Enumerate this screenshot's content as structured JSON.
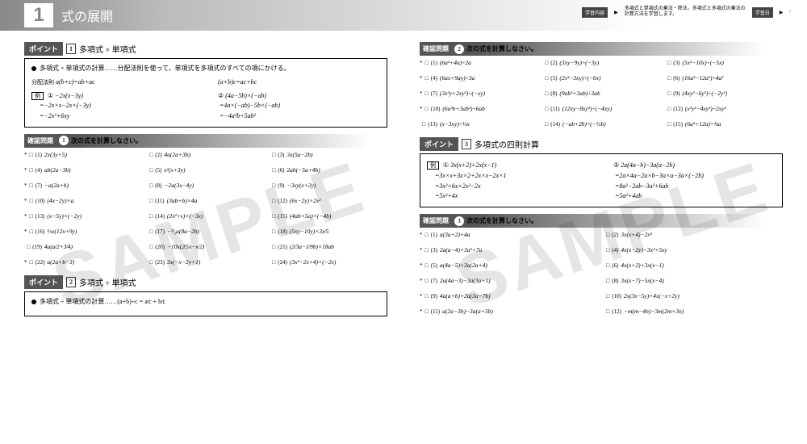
{
  "header": {
    "chapter_num": "1",
    "chapter_title": "式の展開",
    "study_content_label": "学習内容",
    "study_content_text": "多項式と単項式の乗法・除法，多項式と多項式の乗法の計算方法を学習します。",
    "study_day_label": "学習日",
    "study_day_value": "/"
  },
  "watermark": "SAMPLE",
  "point1": {
    "label": "ポイント",
    "num": "1",
    "title": "多項式 × 単項式",
    "lead": "多項式 × 単項式の計算……分配法則を使って，単項式を多項式のすべての項にかける。",
    "dist_label": "分配法則",
    "dist1": "a(b+c)=ab+ac",
    "dist2": "(a+b)c=ac+bc",
    "example_label": "例",
    "ex1": {
      "n": "①",
      "l1": "−2x(x−3y)",
      "l2": "=−2x×x−2x×(−3y)",
      "l3": "=−2x²+6xy"
    },
    "ex2": {
      "n": "②",
      "l1": "(4a−5b)×(−ab)",
      "l2": "=4a×(−ab)−5b×(−ab)",
      "l3": "=−4a²b+5ab²"
    }
  },
  "check1": {
    "label": "確認問題",
    "num": "1",
    "title": "次の式を計算しなさい。",
    "problems": [
      {
        "star": "*",
        "box": "□",
        "n": "(1)",
        "e": "2x(3y+5)"
      },
      {
        "star": "",
        "box": "□",
        "n": "(2)",
        "e": "4a(2a+3b)"
      },
      {
        "star": "",
        "box": "□",
        "n": "(3)",
        "e": "3x(5a−2b)"
      },
      {
        "star": "*",
        "box": "□",
        "n": "(4)",
        "e": "ab(2a−3b)"
      },
      {
        "star": "",
        "box": "□",
        "n": "(5)",
        "e": "x²(x+3y)"
      },
      {
        "star": "",
        "box": "□",
        "n": "(6)",
        "e": "2ab(−5a+4b)"
      },
      {
        "star": "*",
        "box": "□",
        "n": "(7)",
        "e": "−a(2a+b)"
      },
      {
        "star": "",
        "box": "□",
        "n": "(8)",
        "e": "−2a(3x−4y)"
      },
      {
        "star": "",
        "box": "□",
        "n": "(9)",
        "e": "−3xy(x+2y)"
      },
      {
        "star": "*",
        "box": "□",
        "n": "(10)",
        "e": "(4x−2y)×a"
      },
      {
        "star": "",
        "box": "□",
        "n": "(11)",
        "e": "(3ab+b)×4a"
      },
      {
        "star": "",
        "box": "□",
        "n": "(12)",
        "e": "(6x−2y)×2x²"
      },
      {
        "star": "*",
        "box": "□",
        "n": "(13)",
        "e": "(x−5y)×(−2y)"
      },
      {
        "star": "",
        "box": "□",
        "n": "(14)",
        "e": "(2x²+s)×(−3x)"
      },
      {
        "star": "",
        "box": "□",
        "n": "(15)",
        "e": "(4ab+5a)×(−4b)"
      },
      {
        "star": "*",
        "box": "□",
        "n": "(16)",
        "e": "⅓x(12x+9y)"
      },
      {
        "star": "",
        "box": "□",
        "n": "(17)",
        "e": "−³⁄₂a(8a−2b)"
      },
      {
        "star": "",
        "box": "□",
        "n": "(18)",
        "e": "(5xy−10y)×3x⁄5"
      },
      {
        "star": "",
        "box": "□",
        "n": "(19)",
        "e": "4a(a⁄2+3⁄4)"
      },
      {
        "star": "",
        "box": "□",
        "n": "(20)",
        "e": "−10x(2⁄5x−x⁄2)"
      },
      {
        "star": "",
        "box": "□",
        "n": "(21)",
        "e": "(2⁄3a−1⁄9b)×18ab"
      },
      {
        "star": "*",
        "box": "□",
        "n": "(22)",
        "e": "a(2a+b−3)"
      },
      {
        "star": "",
        "box": "□",
        "n": "(23)",
        "e": "3x(−x−2y+1)"
      },
      {
        "star": "",
        "box": "□",
        "n": "(24)",
        "e": "(3x²−2x+4)×(−2x)"
      }
    ]
  },
  "point2": {
    "label": "ポイント",
    "num": "2",
    "title": "多項式 ÷ 単項式",
    "lead": "多項式 ÷ 単項式の計算……(a+b)÷c = a⁄c + b⁄c"
  },
  "check2": {
    "label": "確認問題",
    "num": "2",
    "title": "次の式を計算しなさい。",
    "problems": [
      {
        "star": "*",
        "box": "□",
        "n": "(1)",
        "e": "(6a²+4a)÷2a"
      },
      {
        "star": "",
        "box": "□",
        "n": "(2)",
        "e": "(3xy−9y)÷(−3y)"
      },
      {
        "star": "",
        "box": "□",
        "n": "(3)",
        "e": "(5x²−10x)÷(−5x)"
      },
      {
        "star": "*",
        "box": "□",
        "n": "(4)",
        "e": "(6ax+9ay)÷3a"
      },
      {
        "star": "",
        "box": "□",
        "n": "(5)",
        "e": "(2x²−3xy)÷(−6x)"
      },
      {
        "star": "",
        "box": "□",
        "n": "(6)",
        "e": "(16a³−12a²)÷4a²"
      },
      {
        "star": "*",
        "box": "□",
        "n": "(7)",
        "e": "(3x²y+2xy²)÷(−xy)"
      },
      {
        "star": "",
        "box": "□",
        "n": "(8)",
        "e": "(9ab²+3ab)÷3ab"
      },
      {
        "star": "",
        "box": "□",
        "n": "(9)",
        "e": "(4xy³−6y²)÷(−2y²)"
      },
      {
        "star": "*",
        "box": "□",
        "n": "(10)",
        "e": "(6a²b+3ab²)÷6ab"
      },
      {
        "star": "",
        "box": "□",
        "n": "(11)",
        "e": "(12xy−8xy²)÷(−4xy)"
      },
      {
        "star": "",
        "box": "□",
        "n": "(12)",
        "e": "(x²y²−4xy²)÷2xy²"
      },
      {
        "star": "",
        "box": "□",
        "n": "(13)",
        "e": "(x−3xy)÷⅓x"
      },
      {
        "star": "",
        "box": "□",
        "n": "(14)",
        "e": "(−ab+2b)÷(−½b)"
      },
      {
        "star": "",
        "box": "□",
        "n": "(15)",
        "e": "(6a²+12a)÷¾a"
      }
    ]
  },
  "point3": {
    "label": "ポイント",
    "num": "3",
    "title": "多項式の四則計算",
    "example_label": "例",
    "ex1": {
      "n": "①",
      "l1": "3x(x+2)+2x(x−1)",
      "l2": "=3x×x+3x×2+2x×x−2x×1",
      "l3": "=3x²+6x+2x²−2x",
      "l4": "=5x²+4x"
    },
    "ex2": {
      "n": "②",
      "l1": "2a(4a−b)−3a(a−2b)",
      "l2": "=2a×4a−2a×b−3a×a−3a×(−2b)",
      "l3": "=8a²−2ab−3a²+6ab",
      "l4": "=5a²+4ab"
    }
  },
  "check3": {
    "label": "確認問題",
    "num": "3",
    "title": "次の式を計算しなさい。",
    "problems": [
      {
        "star": "*",
        "box": "□",
        "n": "(1)",
        "e": "a(3a+2)+4a"
      },
      {
        "star": "",
        "box": "□",
        "n": "(2)",
        "e": "3x(x+4)−2x²"
      },
      {
        "star": "*",
        "box": "□",
        "n": "(3)",
        "e": "2a(a−4)+3a²+7a"
      },
      {
        "star": "",
        "box": "□",
        "n": "(4)",
        "e": "4x(x−2y)−3x²+5xy"
      },
      {
        "star": "*",
        "box": "□",
        "n": "(5)",
        "e": "a(4a−5)+3a(2a+4)"
      },
      {
        "star": "",
        "box": "□",
        "n": "(6)",
        "e": "4x(x+2)+3x(x−1)"
      },
      {
        "star": "*",
        "box": "□",
        "n": "(7)",
        "e": "2a(4a−3)−3a(3a+1)"
      },
      {
        "star": "",
        "box": "□",
        "n": "(8)",
        "e": "3x(x−7)−5x(x−4)"
      },
      {
        "star": "*",
        "box": "□",
        "n": "(9)",
        "e": "4a(a+b)+2a(3a−7b)"
      },
      {
        "star": "",
        "box": "□",
        "n": "(10)",
        "e": "2x(3x−5y)+4x(−x+2y)"
      },
      {
        "star": "*",
        "box": "□",
        "n": "(11)",
        "e": "a(2a−3b)−3a(a+5b)"
      },
      {
        "star": "",
        "box": "□",
        "n": "(12)",
        "e": "−m(m−4n)−3m(2m+3n)"
      }
    ]
  }
}
